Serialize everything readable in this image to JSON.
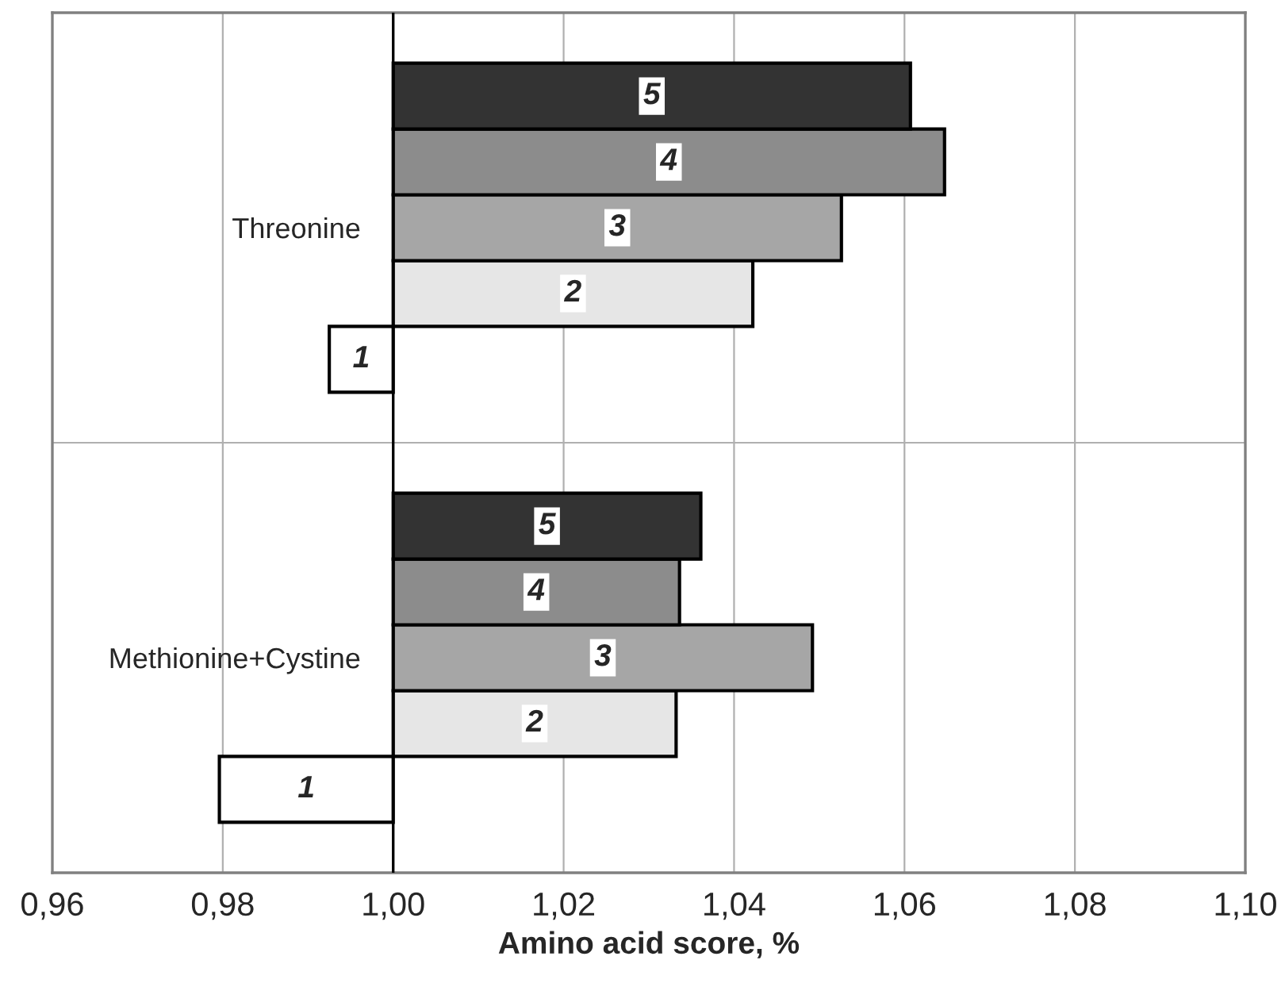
{
  "chart_data": {
    "type": "bar",
    "orientation": "horizontal",
    "xlabel": "Amino acid score, %",
    "categories": [
      "Threonine",
      "Methionine+Cystine"
    ],
    "series": [
      {
        "name": "1",
        "color": "#ffffff",
        "base": [
          1.0,
          1.0
        ],
        "values": [
          -0.0075,
          -0.0204
        ]
      },
      {
        "name": "2",
        "color": "#e6e6e6",
        "base": [
          1.0,
          1.0
        ],
        "values": [
          0.0422,
          0.0332
        ]
      },
      {
        "name": "3",
        "color": "#a6a6a6",
        "base": [
          1.0,
          1.0
        ],
        "values": [
          0.0526,
          0.0492
        ]
      },
      {
        "name": "4",
        "color": "#8c8c8c",
        "base": [
          1.0,
          1.0
        ],
        "values": [
          0.0647,
          0.0336
        ]
      },
      {
        "name": "5",
        "color": "#333333",
        "base": [
          1.0,
          1.0
        ],
        "values": [
          0.0607,
          0.0361
        ]
      }
    ],
    "xlim": [
      0.96,
      1.1
    ],
    "xticks": [
      {
        "value": 0.96,
        "label": "0,96"
      },
      {
        "value": 0.98,
        "label": "0,98"
      },
      {
        "value": 1.0,
        "label": "1,00"
      },
      {
        "value": 1.02,
        "label": "1,02"
      },
      {
        "value": 1.04,
        "label": "1,04"
      },
      {
        "value": 1.06,
        "label": "1,06"
      },
      {
        "value": 1.08,
        "label": "1,08"
      },
      {
        "value": 1.1,
        "label": "1,10"
      }
    ],
    "grid": true,
    "legend": false
  }
}
